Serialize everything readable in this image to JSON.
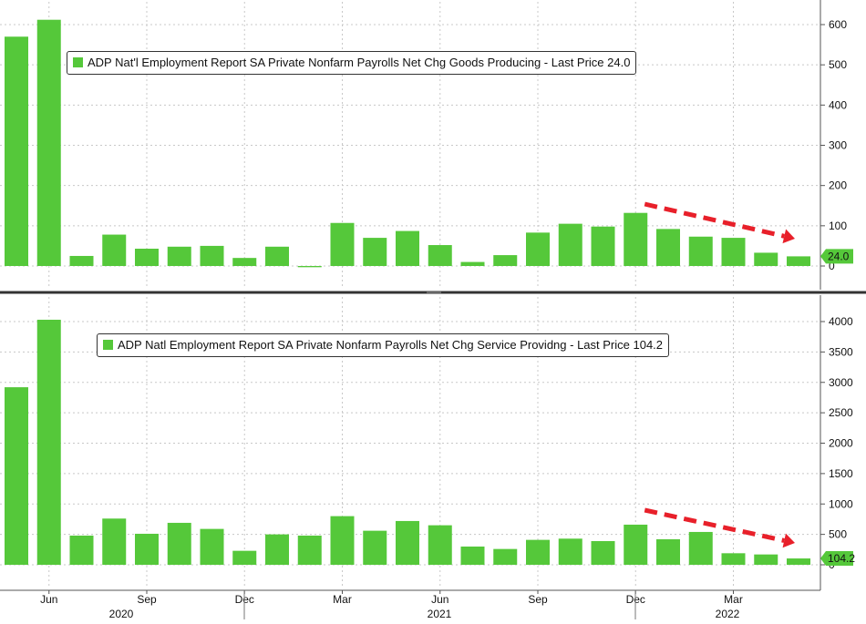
{
  "colors": {
    "bar": "#55c83a",
    "last_price_tag": "#55c83a",
    "trend_arrow": "#e8202a",
    "divider": "#333333",
    "grid": "#c8c8c8",
    "axis_text": "#111111"
  },
  "time_axis": {
    "month_labels": [
      "Jun",
      "Sep",
      "Dec",
      "Mar",
      "Jun",
      "Sep",
      "Dec",
      "Mar"
    ],
    "year_labels": [
      "2020",
      "2021",
      "2022"
    ]
  },
  "chart_data": [
    {
      "type": "bar",
      "title": "ADP Nat'l Employment Report SA Private Nonfarm Payrolls Net Chg Goods Producing - Last Price 24.0",
      "legend_label": "ADP Nat'l Employment Report SA Private Nonfarm Payrolls Net Chg Goods Producing - Last Price 24.0",
      "legend_position": "top-left",
      "grid": true,
      "categories": [
        "2020-05",
        "2020-06",
        "2020-07",
        "2020-08",
        "2020-09",
        "2020-10",
        "2020-11",
        "2020-12",
        "2021-01",
        "2021-02",
        "2021-03",
        "2021-04",
        "2021-05",
        "2021-06",
        "2021-07",
        "2021-08",
        "2021-09",
        "2021-10",
        "2021-11",
        "2021-12",
        "2022-01",
        "2022-02",
        "2022-03",
        "2022-04",
        "2022-05"
      ],
      "values": [
        570,
        612,
        25,
        78,
        43,
        48,
        50,
        20,
        48,
        -3,
        107,
        70,
        87,
        52,
        10,
        27,
        83,
        105,
        98,
        132,
        92,
        73,
        70,
        33,
        24
      ],
      "last_price": "24.0",
      "ylim": [
        -50,
        660
      ],
      "yticks": [
        0,
        100,
        200,
        300,
        400,
        500,
        600
      ],
      "ytick_labels": [
        "0",
        "100",
        "200",
        "300",
        "400",
        "500",
        "600"
      ],
      "trend_arrow": {
        "from": "2021-12",
        "to": "2022-05",
        "style": "dashed",
        "direction": "down"
      }
    },
    {
      "type": "bar",
      "title": "ADP Natl Employment Report SA Private Nonfarm Payrolls Net Chg Service Providng - Last Price 104.2",
      "legend_label": "ADP Natl Employment Report SA Private Nonfarm Payrolls Net Chg Service Providng - Last Price 104.2",
      "legend_position": "top-left",
      "grid": true,
      "categories": [
        "2020-05",
        "2020-06",
        "2020-07",
        "2020-08",
        "2020-09",
        "2020-10",
        "2020-11",
        "2020-12",
        "2021-01",
        "2021-02",
        "2021-03",
        "2021-04",
        "2021-05",
        "2021-06",
        "2021-07",
        "2021-08",
        "2021-09",
        "2021-10",
        "2021-11",
        "2021-12",
        "2022-01",
        "2022-02",
        "2022-03",
        "2022-04",
        "2022-05"
      ],
      "values": [
        2920,
        4030,
        480,
        760,
        510,
        690,
        590,
        230,
        500,
        480,
        800,
        560,
        720,
        650,
        300,
        260,
        410,
        430,
        390,
        660,
        420,
        540,
        190,
        170,
        104.2
      ],
      "last_price": "104.2",
      "ylim": [
        -450,
        4120
      ],
      "yticks": [
        0,
        500,
        1000,
        1500,
        2000,
        2500,
        3000,
        3500,
        4000
      ],
      "ytick_labels": [
        "0",
        "500",
        "1000",
        "1500",
        "2000",
        "2500",
        "3000",
        "3500",
        "4000"
      ],
      "trend_arrow": {
        "from": "2021-12",
        "to": "2022-05",
        "style": "dashed",
        "direction": "down"
      }
    }
  ]
}
